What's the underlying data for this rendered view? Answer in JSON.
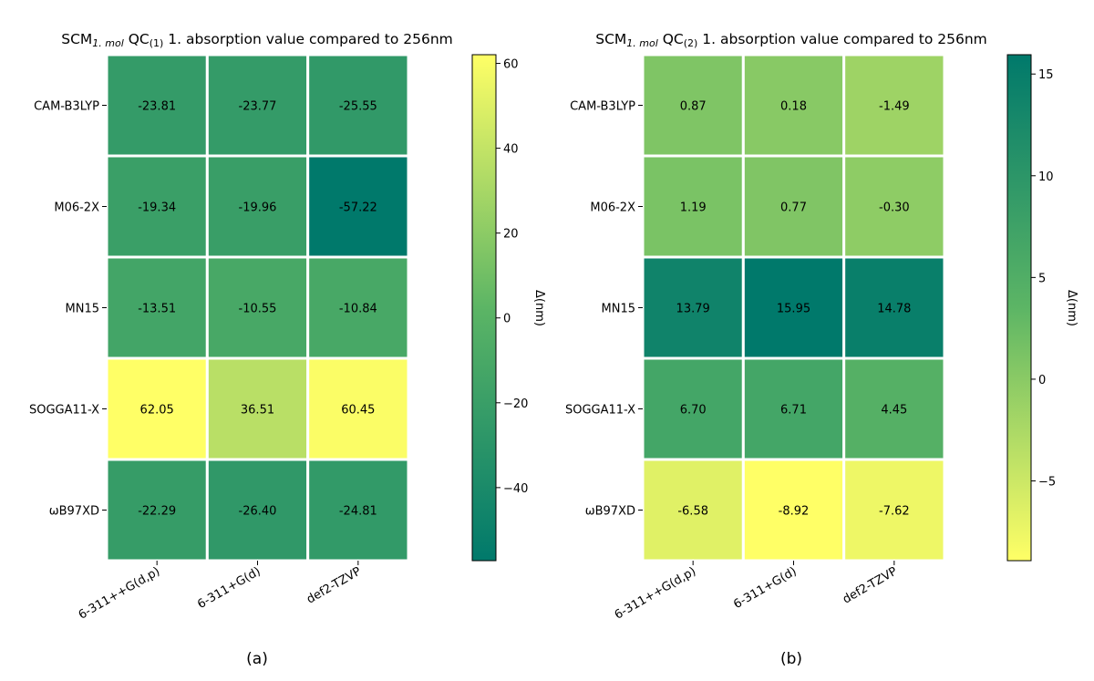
{
  "chart_data": [
    {
      "type": "heatmap",
      "title": "SCM1. mol QC(1) 1. absorption value compared to 256nm",
      "title_parts": {
        "base": "SCM",
        "sub1": "1. mol",
        "mid": " QC",
        "sub2": "(1)",
        "rest": " 1. absorption value compared to 256nm"
      },
      "rows": [
        "CAM-B3LYP",
        "M06-2X",
        "MN15",
        "SOGGA11-X",
        "ωB97XD"
      ],
      "columns": [
        "6-311++G(d,p)",
        "6-311+G(d)",
        "def2-TZVP"
      ],
      "values": [
        [
          -23.81,
          -23.77,
          -25.55
        ],
        [
          -19.34,
          -19.96,
          -57.22
        ],
        [
          -13.51,
          -10.55,
          -10.84
        ],
        [
          62.05,
          36.51,
          60.45
        ],
        [
          -22.29,
          -26.4,
          -24.81
        ]
      ],
      "value_labels": [
        [
          "-23.81",
          "-23.77",
          "-25.55"
        ],
        [
          "-19.34",
          "-19.96",
          "-57.22"
        ],
        [
          "-13.51",
          "-10.55",
          "-10.84"
        ],
        [
          "62.05",
          "36.51",
          "60.45"
        ],
        [
          "-22.29",
          "-26.40",
          "-24.81"
        ]
      ],
      "colorbar": {
        "label": "Δ(nm)",
        "range": [
          -57.22,
          62.05
        ],
        "ticks": [
          -40,
          -20,
          0,
          20,
          40,
          60
        ],
        "tick_labels": [
          "−40",
          "−20",
          "0",
          "20",
          "40",
          "60"
        ],
        "low_color": "#00796b",
        "high_color": "#ffff66",
        "low_value_is_dark": true
      },
      "panel_label": "(a)"
    },
    {
      "type": "heatmap",
      "title": "SCM1. mol QC(2) 1. absorption value compared to 256nm",
      "title_parts": {
        "base": "SCM",
        "sub1": "1. mol",
        "mid": " QC",
        "sub2": "(2)",
        "rest": " 1. absorption value compared to 256nm"
      },
      "rows": [
        "CAM-B3LYP",
        "M06-2X",
        "MN15",
        "SOGGA11-X",
        "ωB97XD"
      ],
      "columns": [
        "6-311++G(d,p)",
        "6-311+G(d)",
        "def2-TZVP"
      ],
      "values": [
        [
          0.87,
          0.18,
          -1.49
        ],
        [
          1.19,
          0.77,
          -0.3
        ],
        [
          13.79,
          15.95,
          14.78
        ],
        [
          6.7,
          6.71,
          4.45
        ],
        [
          -6.58,
          -8.92,
          -7.62
        ]
      ],
      "value_labels": [
        [
          "0.87",
          "0.18",
          "-1.49"
        ],
        [
          "1.19",
          "0.77",
          "-0.30"
        ],
        [
          "13.79",
          "15.95",
          "14.78"
        ],
        [
          "6.70",
          "6.71",
          "4.45"
        ],
        [
          "-6.58",
          "-8.92",
          "-7.62"
        ]
      ],
      "colorbar": {
        "label": "Δ(nm)",
        "range": [
          -8.92,
          15.95
        ],
        "ticks": [
          -5,
          0,
          5,
          10,
          15
        ],
        "tick_labels": [
          "−5",
          "0",
          "5",
          "10",
          "15"
        ],
        "low_color": "#ffff66",
        "high_color": "#00796b",
        "low_value_is_dark": false
      },
      "panel_label": "(b)"
    }
  ]
}
